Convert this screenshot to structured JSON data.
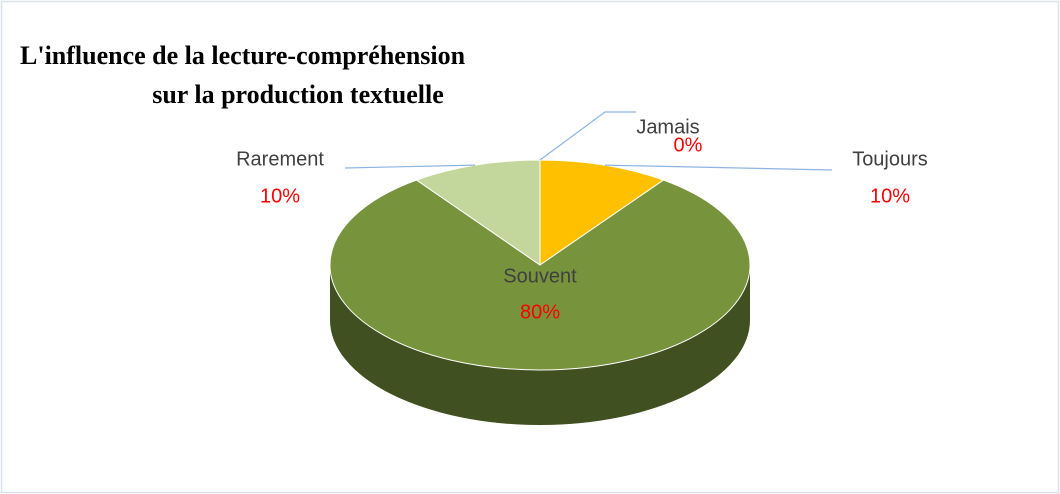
{
  "chart_data": {
    "type": "pie3d",
    "title": [
      "L'influence de la lecture-compréhension",
      "sur la production textuelle"
    ],
    "categories": [
      "Jamais",
      "Toujours",
      "Souvent",
      "Rarement"
    ],
    "values": [
      0,
      10,
      80,
      10
    ],
    "value_labels": [
      "0%",
      "10%",
      "80%",
      "10%"
    ],
    "colors": [
      "#4f81bd",
      "#ffc000",
      "#77933c",
      "#c3d69b"
    ]
  }
}
